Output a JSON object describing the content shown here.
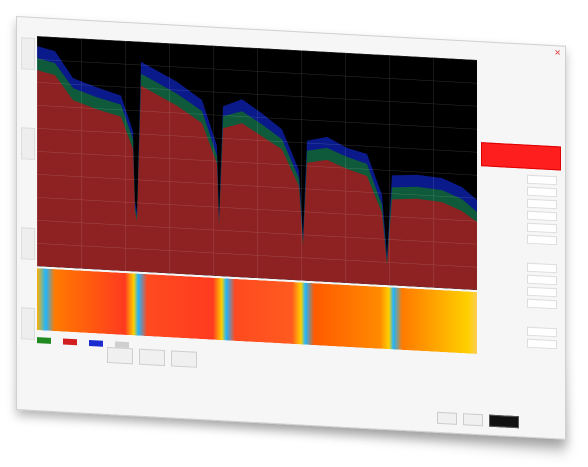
{
  "window": {
    "title": "",
    "close_icon": "close-icon"
  },
  "colors": {
    "plot_background": "#000000",
    "fill_primary": "#8e2121",
    "fill_secondary": "#0f5a3a",
    "fill_tertiary": "#0a1a8a",
    "record_button": "#ff1e1e"
  },
  "right_panel": {
    "record_label": "",
    "fields": [
      "",
      "",
      "",
      "",
      "",
      "",
      "",
      "",
      "",
      "",
      "",
      ""
    ]
  },
  "legend": {
    "items": [
      {
        "color": "#1f8a1f",
        "label": ""
      },
      {
        "color": "#d21e1e",
        "label": ""
      },
      {
        "color": "#1a2bd0",
        "label": ""
      },
      {
        "color": "#cfcfcf",
        "label": ""
      }
    ]
  },
  "status": {
    "text": ""
  },
  "footer": {
    "ok_label": "",
    "buttons": [
      "",
      ""
    ]
  }
}
